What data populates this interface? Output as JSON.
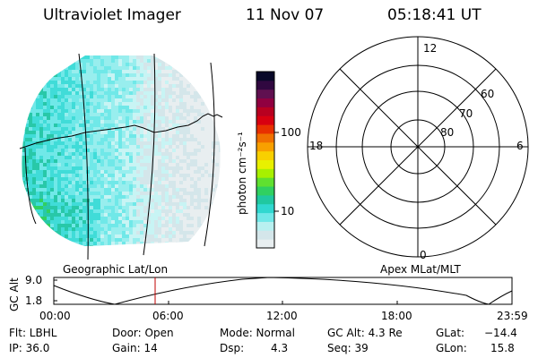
{
  "header": {
    "instrument": "Ultraviolet Imager",
    "date": "11 Nov 07",
    "time": "05:18:41 UT"
  },
  "colorbar": {
    "unit_label": "photon cm⁻²s⁻¹",
    "ticks": [
      "100",
      "10"
    ],
    "colors": [
      "#e8eef0",
      "#d4e6ea",
      "#b8f0f0",
      "#70e8e8",
      "#30d8d0",
      "#20c8a0",
      "#30d060",
      "#60e030",
      "#a8f000",
      "#e8f000",
      "#f8d000",
      "#f8a000",
      "#f07000",
      "#e83000",
      "#d80010",
      "#b80020",
      "#900040",
      "#601050",
      "#300840",
      "#080828"
    ]
  },
  "geographic_panel": {
    "label": "Geographic Lat/Lon"
  },
  "polar_plot": {
    "label": "Apex MLat/MLT",
    "mlt_labels": [
      "12",
      "18",
      "6",
      "0"
    ],
    "lat_labels": [
      "60",
      "70",
      "80"
    ]
  },
  "altitude_plot": {
    "ylabel": "GC Alt",
    "yticks": [
      "9.0",
      "1.8"
    ],
    "xticks": [
      "00:00",
      "06:00",
      "12:00",
      "18:00",
      "23:59"
    ]
  },
  "status": {
    "flt": "Flt: LBHL",
    "ip": "IP: 36.0",
    "door": "Door: Open",
    "gain": "Gain: 14",
    "mode": "Mode: Normal",
    "dsp_label": "Dsp:",
    "dsp_value": "4.3",
    "gc_alt": "GC Alt: 4.3 Re",
    "seq": "Seq: 39",
    "glat_label": "GLat:",
    "glat_value": "−14.4",
    "glon_label": "GLon:",
    "glon_value": "15.8"
  }
}
